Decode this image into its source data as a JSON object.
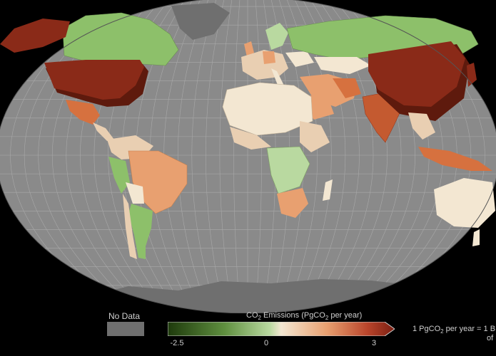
{
  "legend": {
    "no_data_label": "No Data",
    "title_prefix": "CO",
    "title_sub": "2",
    "title_mid": " Emissions  (PgCO",
    "title_sub2": "2",
    "title_suffix": " per year)",
    "ticks": [
      "-2.5",
      "0",
      "3"
    ],
    "range": [
      -2.5,
      3
    ],
    "note_line1": "1 PgCO",
    "note_sub": "2",
    "note_rest": " per year = 1 B",
    "note_line2": "of",
    "colors": {
      "no_data": "#6f6f6f",
      "ocean": "#8a8a8a",
      "negative_strong": "#1e3a0c",
      "negative_mid": "#8dc06a",
      "neutral": "#f3e7d2",
      "positive_mid": "#e8a070",
      "positive_strong": "#7a1e12"
    }
  }
}
